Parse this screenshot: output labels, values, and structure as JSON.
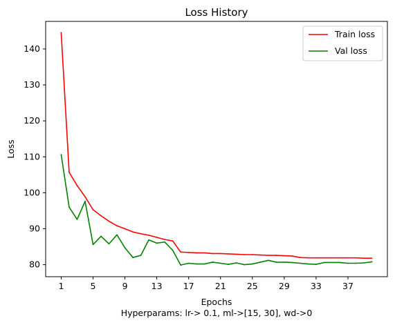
{
  "chart_data": {
    "type": "line",
    "title": "Loss History",
    "xlabel": "Epochs",
    "ylabel": "Loss",
    "caption": "Hyperparams: lr-> 0.1, ml->[15, 30], wd->0",
    "x": [
      1,
      2,
      3,
      4,
      5,
      6,
      7,
      8,
      9,
      10,
      11,
      12,
      13,
      14,
      15,
      16,
      17,
      18,
      19,
      20,
      21,
      22,
      23,
      24,
      25,
      26,
      27,
      28,
      29,
      30,
      31,
      32,
      33,
      34,
      35,
      36,
      37,
      38,
      39,
      40
    ],
    "series": [
      {
        "name": "Train loss",
        "color": "#ff0000",
        "values": [
          144.5,
          105.7,
          102.0,
          98.9,
          95.3,
          93.6,
          92.1,
          90.8,
          90.0,
          89.1,
          88.6,
          88.2,
          87.6,
          87.0,
          86.6,
          83.5,
          83.4,
          83.3,
          83.3,
          83.1,
          83.1,
          83.0,
          82.9,
          82.8,
          82.8,
          82.7,
          82.6,
          82.6,
          82.5,
          82.4,
          82.0,
          81.9,
          81.9,
          81.9,
          81.9,
          81.9,
          81.9,
          81.9,
          81.8,
          81.8
        ]
      },
      {
        "name": "Val loss",
        "color": "#008000",
        "values": [
          110.6,
          96.0,
          92.6,
          97.6,
          85.6,
          87.9,
          85.8,
          88.3,
          84.7,
          82.0,
          82.6,
          86.9,
          86.0,
          86.3,
          84.0,
          79.9,
          80.4,
          80.2,
          80.2,
          80.7,
          80.4,
          80.1,
          80.5,
          80.0,
          80.2,
          80.7,
          81.2,
          80.7,
          80.7,
          80.6,
          80.4,
          80.2,
          80.1,
          80.6,
          80.6,
          80.6,
          80.4,
          80.4,
          80.5,
          80.8
        ]
      }
    ],
    "xticks": [
      1,
      5,
      9,
      13,
      17,
      21,
      25,
      29,
      33,
      37
    ],
    "yticks": [
      80,
      90,
      100,
      110,
      120,
      130,
      140
    ],
    "xlim": [
      -0.95,
      41.95
    ],
    "ylim": [
      76.66,
      147.66
    ],
    "grid": false,
    "legend_position": "upper-right"
  }
}
